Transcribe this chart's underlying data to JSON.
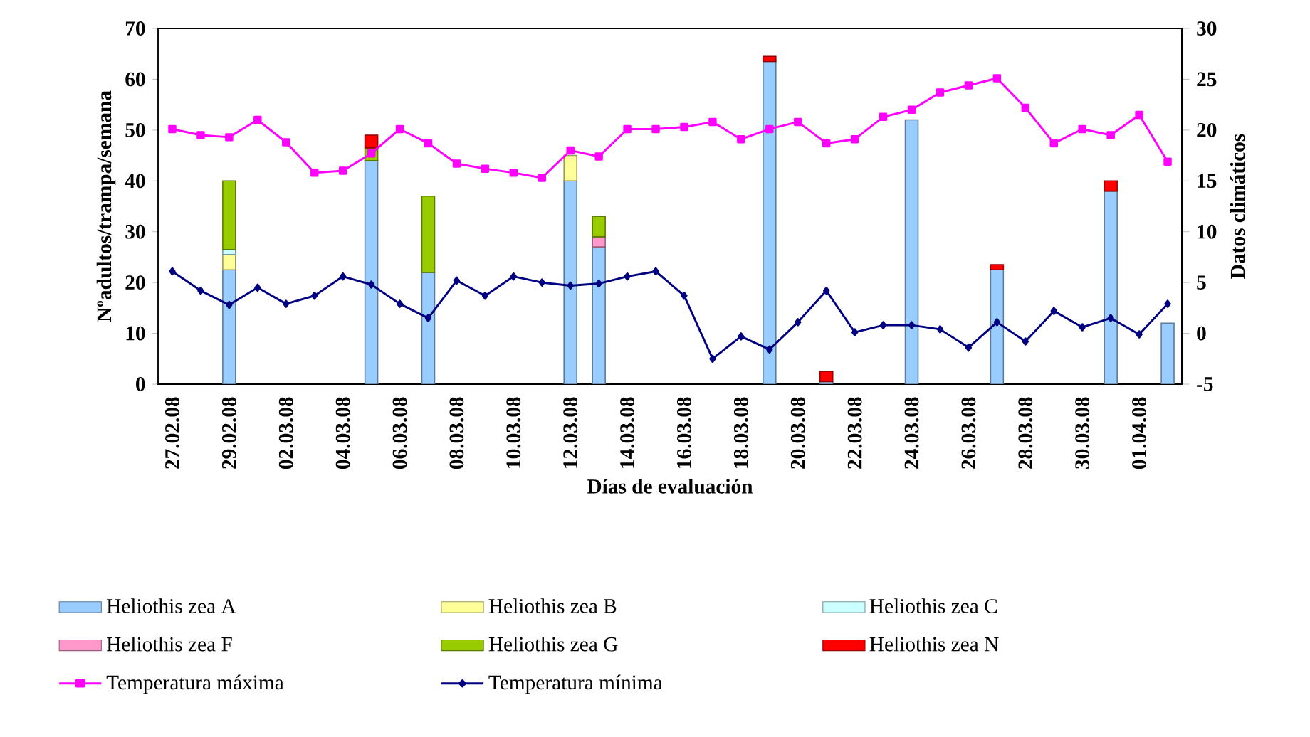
{
  "chart_data": {
    "type": "bar",
    "stacked": true,
    "xlabel": "Días de evaluación",
    "ylabel": "Nºadultos/trampa/semana",
    "y2label": "Datos climáticos",
    "categories": [
      "27.02.08",
      null,
      "29.02.08",
      null,
      "02.03.08",
      null,
      "04.03.08",
      null,
      "06.03.08",
      null,
      "08.03.08",
      null,
      "10.03.08",
      null,
      "12.03.08",
      null,
      "14.03.08",
      null,
      "16.03.08",
      null,
      "18.03.08",
      null,
      "20.03.08",
      null,
      "22.03.08",
      null,
      "24.03.08",
      null,
      "26.03.08",
      null,
      "28.03.08",
      null,
      "30.03.08",
      null,
      "01.04.08",
      null
    ],
    "ylim": [
      0,
      70
    ],
    "yticks": [
      0,
      10,
      20,
      30,
      40,
      50,
      60,
      70
    ],
    "y2lim": [
      -5,
      30
    ],
    "y2ticks": [
      -5,
      0,
      5,
      10,
      15,
      20,
      25,
      30
    ],
    "legend": "bottom",
    "series": [
      {
        "name": "Heliothis zea A",
        "color": "#99ccff",
        "values": [
          null,
          null,
          22.5,
          null,
          null,
          null,
          null,
          44,
          null,
          22,
          null,
          null,
          null,
          null,
          40,
          27,
          null,
          null,
          null,
          null,
          null,
          63.5,
          null,
          0.5,
          null,
          null,
          52,
          null,
          null,
          22.5,
          null,
          null,
          null,
          38,
          null,
          12
        ]
      },
      {
        "name": "Heliothis zea B",
        "color": "#ffff99",
        "values": [
          null,
          null,
          3,
          null,
          null,
          null,
          null,
          null,
          null,
          null,
          null,
          null,
          null,
          null,
          5,
          null,
          null,
          null,
          null,
          null,
          null,
          null,
          null,
          null,
          null,
          null,
          null,
          null,
          null,
          null,
          null,
          null,
          null,
          null,
          null,
          null
        ]
      },
      {
        "name": "Heliothis zea C",
        "color": "#ccffff",
        "values": [
          null,
          null,
          1,
          null,
          null,
          null,
          null,
          null,
          null,
          null,
          null,
          null,
          null,
          null,
          null,
          null,
          null,
          null,
          null,
          null,
          null,
          null,
          null,
          null,
          null,
          null,
          null,
          null,
          null,
          null,
          null,
          null,
          null,
          null,
          null,
          null
        ]
      },
      {
        "name": "Heliothis zea F",
        "color": "#ff99cc",
        "values": [
          null,
          null,
          null,
          null,
          null,
          null,
          null,
          null,
          null,
          null,
          null,
          null,
          null,
          null,
          null,
          2,
          null,
          null,
          null,
          null,
          null,
          null,
          null,
          null,
          null,
          null,
          null,
          null,
          null,
          null,
          null,
          null,
          null,
          null,
          null,
          null
        ]
      },
      {
        "name": "Heliothis zea G",
        "color": "#99cc00",
        "values": [
          null,
          null,
          13.5,
          null,
          null,
          null,
          null,
          2.5,
          null,
          15,
          null,
          null,
          null,
          null,
          null,
          4,
          null,
          null,
          null,
          null,
          null,
          null,
          null,
          null,
          null,
          null,
          null,
          null,
          null,
          null,
          null,
          null,
          null,
          null,
          null,
          null
        ]
      },
      {
        "name": "Heliothis zea N",
        "color": "#ff0000",
        "values": [
          null,
          null,
          null,
          null,
          null,
          null,
          null,
          2.5,
          null,
          null,
          null,
          null,
          null,
          null,
          null,
          null,
          null,
          null,
          null,
          null,
          null,
          1,
          null,
          2,
          null,
          null,
          null,
          null,
          null,
          1,
          null,
          null,
          null,
          2,
          null,
          null
        ]
      },
      {
        "name": "Temperatura máxima",
        "type": "line",
        "axis": "y2",
        "marker": "square",
        "color": "#ff00ff",
        "values": [
          20.1,
          19.5,
          19.3,
          21.0,
          18.8,
          15.8,
          16.0,
          17.7,
          20.1,
          18.7,
          16.7,
          16.2,
          15.8,
          15.3,
          18.0,
          17.4,
          20.1,
          20.1,
          20.3,
          20.8,
          19.1,
          20.1,
          20.8,
          18.7,
          19.1,
          21.3,
          22.0,
          23.7,
          24.4,
          25.1,
          22.2,
          18.7,
          20.1,
          19.5,
          21.5,
          16.9
        ]
      },
      {
        "name": "Temperatura mínima",
        "type": "line",
        "axis": "y2",
        "marker": "diamond",
        "color": "#000080",
        "values": [
          6.1,
          4.2,
          2.8,
          4.5,
          2.9,
          3.7,
          5.6,
          4.8,
          2.9,
          1.5,
          5.2,
          3.7,
          5.6,
          5.0,
          4.7,
          4.9,
          5.6,
          6.1,
          3.7,
          -2.5,
          -0.3,
          -1.6,
          1.1,
          4.2,
          0.1,
          0.8,
          0.8,
          0.4,
          -1.4,
          1.1,
          -0.8,
          2.2,
          0.6,
          1.5,
          -0.1,
          2.9
        ]
      }
    ]
  }
}
